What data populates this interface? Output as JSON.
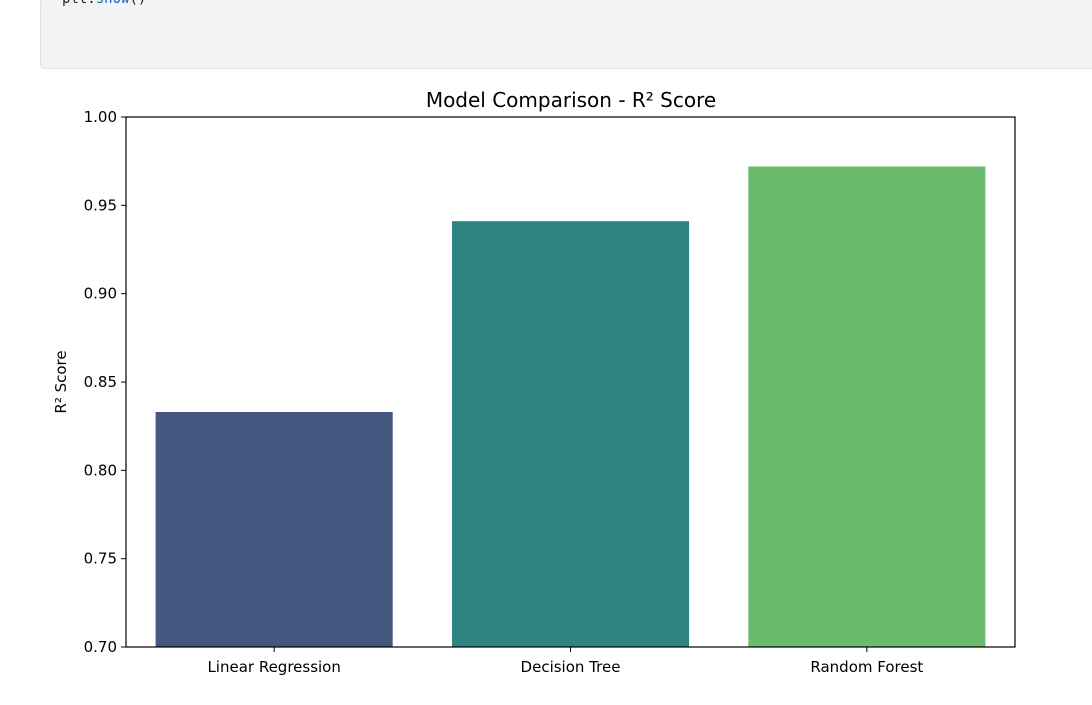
{
  "code_cell": {
    "object": "plt",
    "dot": ".",
    "method": "show",
    "parens": "()"
  },
  "chart_data": {
    "type": "bar",
    "title": "Model Comparison - R² Score",
    "xlabel": "",
    "ylabel": "R² Score",
    "categories": [
      "Linear Regression",
      "Decision Tree",
      "Random Forest"
    ],
    "values": [
      0.833,
      0.941,
      0.972
    ],
    "colors": [
      "#46577f",
      "#2e8480",
      "#6abc6c"
    ],
    "ylim": [
      0.7,
      1.0
    ],
    "yticks": [
      0.7,
      0.75,
      0.8,
      0.85,
      0.9,
      0.95,
      1.0
    ],
    "ytick_labels": [
      "0.70",
      "0.75",
      "0.80",
      "0.85",
      "0.90",
      "0.95",
      "1.00"
    ],
    "grid": false,
    "legend": "none"
  }
}
